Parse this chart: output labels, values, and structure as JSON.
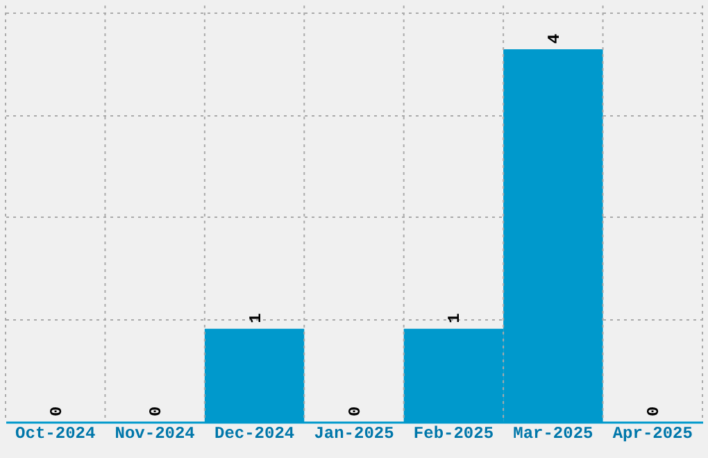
{
  "chart_data": {
    "type": "bar",
    "categories": [
      "Oct-2024",
      "Nov-2024",
      "Dec-2024",
      "Jan-2025",
      "Feb-2025",
      "Mar-2025",
      "Apr-2025"
    ],
    "values": [
      0,
      0,
      1,
      0,
      1,
      4,
      0
    ],
    "color": "#0099cc",
    "ylim": [
      0,
      4.47
    ],
    "yticks": [
      {
        "value": 1.1,
        "label": null
      },
      {
        "value": 2.2,
        "label": null
      },
      {
        "value": 3.3,
        "label": null
      },
      {
        "value": 4.4,
        "label": null
      }
    ],
    "tick_labels": "x",
    "grid": true,
    "data_labels": true
  }
}
